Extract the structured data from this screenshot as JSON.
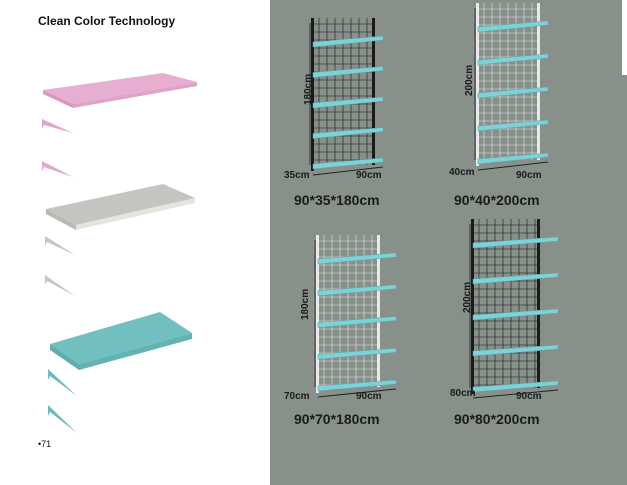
{
  "page": {
    "title": "Clean Color Technology",
    "page_number": "•71"
  },
  "colors": {
    "pink": "#e6aed0",
    "gray": "#c4c4c0",
    "teal": "#72bfc0",
    "background": "#87918a",
    "shelf": "#7fd0d8"
  },
  "units": [
    {
      "height": "180cm",
      "depth": "35cm",
      "width": "90cm",
      "caption": "90*35*180cm",
      "frame": "black"
    },
    {
      "height": "200cm",
      "depth": "40cm",
      "width": "90cm",
      "caption": "90*40*200cm",
      "frame": "white"
    },
    {
      "height": "180cm",
      "depth": "70cm",
      "width": "90cm",
      "caption": "90*70*180cm",
      "frame": "white"
    },
    {
      "height": "200cm",
      "depth": "80cm",
      "width": "90cm",
      "caption": "90*80*200cm",
      "frame": "black"
    }
  ]
}
